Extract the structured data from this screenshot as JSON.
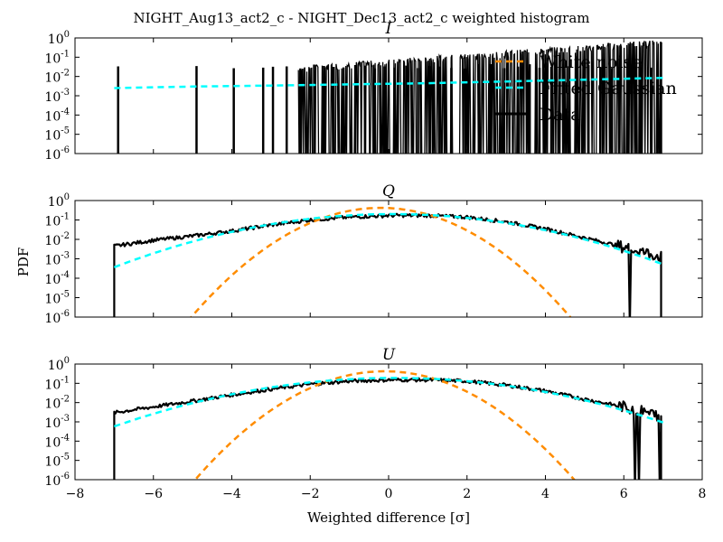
{
  "chart_data": {
    "type": "line",
    "title": "NIGHT_Aug13_act2_c - NIGHT_Dec13_act2_c weighted histogram",
    "xlabel": "Weighted difference [σ]",
    "ylabel": "PDF",
    "xlim": [
      -8,
      8
    ],
    "ylim": [
      1e-06,
      1
    ],
    "yscale": "log",
    "xticks": [
      "−8",
      "−6",
      "−4",
      "−2",
      "0",
      "2",
      "4",
      "6",
      "8"
    ],
    "yticks": [
      {
        "base": "10",
        "exp": "0"
      },
      {
        "base": "10",
        "exp": "-1"
      },
      {
        "base": "10",
        "exp": "-2"
      },
      {
        "base": "10",
        "exp": "-3"
      },
      {
        "base": "10",
        "exp": "-4"
      },
      {
        "base": "10",
        "exp": "-5"
      },
      {
        "base": "10",
        "exp": "-6"
      }
    ],
    "colors": {
      "white_noise": "#ff8c00",
      "fitted_gaussian": "#00ffff",
      "data": "#000000"
    },
    "legend": {
      "placement": "top-right of I panel",
      "entries": [
        "White noise",
        "Fitted Gaussian",
        "Data"
      ]
    },
    "panels": [
      {
        "label": "I",
        "series": [
          {
            "name": "Fitted Gaussian",
            "style": "dashed",
            "x": [
              -7.0,
              -5.0,
              -3.0,
              -1.0,
              1.0,
              3.0,
              5.0,
              7.0
            ],
            "y": [
              0.0025,
              0.003,
              0.0034,
              0.0039,
              0.0045,
              0.0055,
              0.0068,
              0.0085
            ]
          },
          {
            "name": "Data",
            "style": "solid-noisy",
            "spikes": [
              -6.9,
              -4.9,
              -3.95,
              -3.2,
              -2.95,
              -2.6,
              -2.25,
              -1.9,
              -1.65,
              -1.4,
              -1.15,
              -0.85,
              -0.6,
              -0.35,
              -0.1,
              0.15,
              0.45,
              0.75,
              1.05,
              1.3,
              1.6,
              1.95,
              2.3,
              2.6,
              2.95,
              3.3,
              3.6,
              3.85,
              4.15,
              4.6,
              5.1,
              5.4,
              5.7,
              6.1,
              6.4,
              6.7
            ],
            "band_x": [
              -2.3,
              6.95
            ],
            "band_y": [
              0.025,
              0.6
            ],
            "edge_x": 6.95
          }
        ]
      },
      {
        "label": "Q",
        "series": [
          {
            "name": "White noise",
            "style": "dashed",
            "mu": -0.2,
            "sigma": 0.95,
            "peak": 0.42
          },
          {
            "name": "Fitted Gaussian",
            "style": "dashed",
            "mu": 0.1,
            "sigma": 2.0,
            "peak": 0.2
          },
          {
            "name": "Data",
            "style": "solid-noisy",
            "x": [
              -7.0,
              -6.0,
              -5.0,
              -4.0,
              -3.0,
              -2.0,
              -1.0,
              0.0,
              1.0,
              2.0,
              3.0,
              4.0,
              5.0,
              6.0,
              6.95
            ],
            "y": [
              0.0045,
              0.009,
              0.015,
              0.027,
              0.055,
              0.1,
              0.14,
              0.17,
              0.17,
              0.14,
              0.08,
              0.035,
              0.012,
              0.004,
              0.0013
            ]
          }
        ]
      },
      {
        "label": "U",
        "series": [
          {
            "name": "White noise",
            "style": "dashed",
            "mu": -0.1,
            "sigma": 0.95,
            "peak": 0.42
          },
          {
            "name": "Fitted Gaussian",
            "style": "dashed",
            "mu": 0.15,
            "sigma": 2.1,
            "peak": 0.19
          },
          {
            "name": "Data",
            "style": "solid-noisy",
            "x": [
              -7.0,
              -6.0,
              -5.0,
              -4.0,
              -3.0,
              -2.0,
              -1.0,
              0.0,
              1.0,
              2.0,
              3.0,
              4.0,
              5.0,
              6.0,
              6.95
            ],
            "y": [
              0.003,
              0.006,
              0.012,
              0.025,
              0.05,
              0.09,
              0.13,
              0.15,
              0.15,
              0.13,
              0.08,
              0.04,
              0.015,
              0.006,
              0.002
            ]
          }
        ]
      }
    ]
  }
}
